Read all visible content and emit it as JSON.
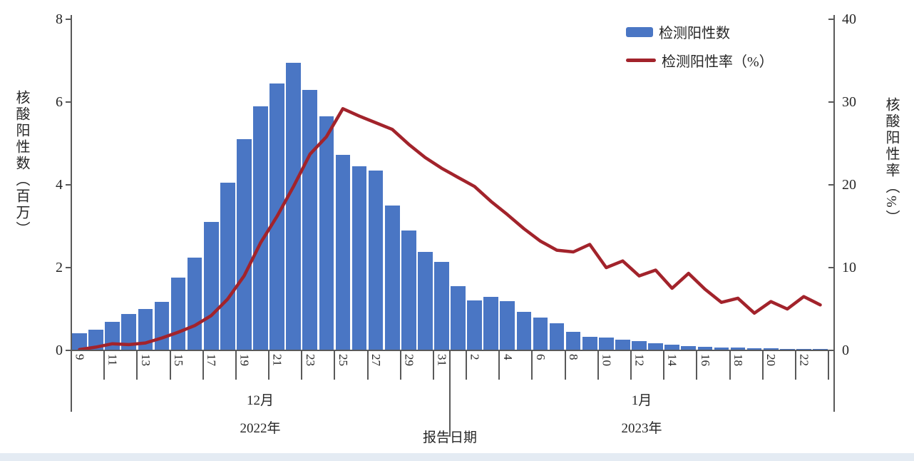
{
  "figure": {
    "legend": [
      {
        "label": "检测阳性数",
        "type": "bar",
        "color": "#4A76C4"
      },
      {
        "label": "检测阳性率（%）",
        "type": "line",
        "color": "#A2232B"
      }
    ],
    "left_axis": {
      "title": "核酸阳性数（百万）",
      "ticks": [
        0,
        2,
        4,
        6,
        8
      ],
      "min": 0,
      "max": 8
    },
    "right_axis": {
      "title": "核酸阳性率（%）",
      "ticks": [
        0,
        10,
        20,
        30,
        40
      ],
      "min": 0,
      "max": 40
    },
    "x_axis": {
      "title": "报告日期",
      "groups": [
        {
          "month": "12月",
          "year": "2022年"
        },
        {
          "month": "1月",
          "year": "2023年"
        }
      ],
      "labels_shown": [
        9,
        11,
        13,
        15,
        17,
        19,
        21,
        23,
        25,
        27,
        29,
        31,
        2,
        4,
        6,
        8,
        10,
        12,
        14,
        16,
        18,
        20,
        22
      ]
    },
    "axis_color": "#595959"
  },
  "chart_data": {
    "type": "bar+line",
    "title": "",
    "xlabel": "报告日期",
    "categories": [
      "12/9",
      "12/10",
      "12/11",
      "12/12",
      "12/13",
      "12/14",
      "12/15",
      "12/16",
      "12/17",
      "12/18",
      "12/19",
      "12/20",
      "12/21",
      "12/22",
      "12/23",
      "12/24",
      "12/25",
      "12/26",
      "12/27",
      "12/28",
      "12/29",
      "12/30",
      "12/31",
      "1/1",
      "1/2",
      "1/3",
      "1/4",
      "1/5",
      "1/6",
      "1/7",
      "1/8",
      "1/9",
      "1/10",
      "1/11",
      "1/12",
      "1/13",
      "1/14",
      "1/15",
      "1/16",
      "1/17",
      "1/18",
      "1/19",
      "1/20",
      "1/21",
      "1/22",
      "1/23"
    ],
    "series": [
      {
        "name": "检测阳性数",
        "type": "bar",
        "axis": "left",
        "unit": "百万",
        "ylim": [
          0,
          8
        ],
        "values": [
          0.42,
          0.5,
          0.69,
          0.88,
          1.0,
          1.17,
          1.76,
          2.25,
          3.1,
          4.05,
          5.1,
          5.9,
          6.45,
          6.95,
          6.3,
          5.65,
          4.72,
          4.45,
          4.35,
          3.5,
          2.9,
          2.38,
          2.13,
          1.55,
          1.21,
          1.3,
          1.19,
          0.93,
          0.8,
          0.66,
          0.45,
          0.33,
          0.31,
          0.26,
          0.22,
          0.17,
          0.14,
          0.1,
          0.09,
          0.07,
          0.07,
          0.05,
          0.05,
          0.04,
          0.03,
          0.03
        ]
      },
      {
        "name": "检测阳性率（%）",
        "type": "line",
        "axis": "right",
        "unit": "%",
        "ylim": [
          0,
          40
        ],
        "values": [
          0.1,
          0.4,
          0.8,
          0.7,
          0.9,
          1.5,
          2.2,
          3.0,
          4.2,
          6.2,
          9.0,
          13.0,
          16.2,
          19.8,
          23.7,
          25.8,
          29.2,
          28.3,
          27.5,
          26.7,
          24.9,
          23.3,
          22.0,
          20.9,
          19.8,
          18.0,
          16.4,
          14.7,
          13.2,
          12.1,
          11.9,
          12.8,
          10.0,
          10.8,
          9.0,
          9.7,
          7.5,
          9.3,
          7.4,
          5.8,
          6.3,
          4.5,
          5.9,
          5.0,
          6.5,
          5.5
        ]
      }
    ],
    "legend_position": "top-right",
    "grid": false
  }
}
